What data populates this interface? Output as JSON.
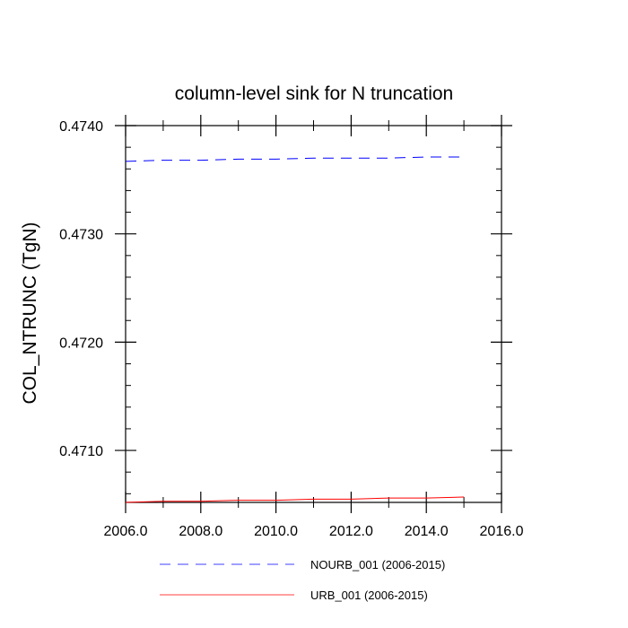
{
  "chart_data": {
    "type": "line",
    "title": "column-level sink for N truncation",
    "xlabel": "",
    "ylabel": "COL_NTRUNC  (TgN)",
    "xlim": [
      2006.0,
      2016.0
    ],
    "ylim": [
      0.47052,
      0.474
    ],
    "x_ticks": [
      2006.0,
      2008.0,
      2010.0,
      2012.0,
      2014.0,
      2016.0
    ],
    "x_tick_labels": [
      "2006.0",
      "2008.0",
      "2010.0",
      "2012.0",
      "2014.0",
      "2016.0"
    ],
    "y_ticks": [
      0.471,
      0.472,
      0.473,
      0.474
    ],
    "y_tick_labels": [
      "0.4710",
      "0.4720",
      "0.4730",
      "0.4740"
    ],
    "grid": false,
    "legend_position": "bottom",
    "series": [
      {
        "name": "NOURB_001 (2006-2015)",
        "color": "#0000ff",
        "dash": "dashed",
        "x": [
          2006,
          2007,
          2008,
          2009,
          2010,
          2011,
          2012,
          2013,
          2014,
          2015
        ],
        "values": [
          0.47367,
          0.47368,
          0.47368,
          0.47369,
          0.47369,
          0.4737,
          0.4737,
          0.4737,
          0.47371,
          0.47371
        ]
      },
      {
        "name": "URB_001 (2006-2015)",
        "color": "#ff0000",
        "dash": "solid",
        "x": [
          2006,
          2007,
          2008,
          2009,
          2010,
          2011,
          2012,
          2013,
          2014,
          2015
        ],
        "values": [
          0.47052,
          0.47053,
          0.47053,
          0.47054,
          0.47054,
          0.47055,
          0.47055,
          0.47056,
          0.47056,
          0.47057
        ]
      }
    ]
  }
}
